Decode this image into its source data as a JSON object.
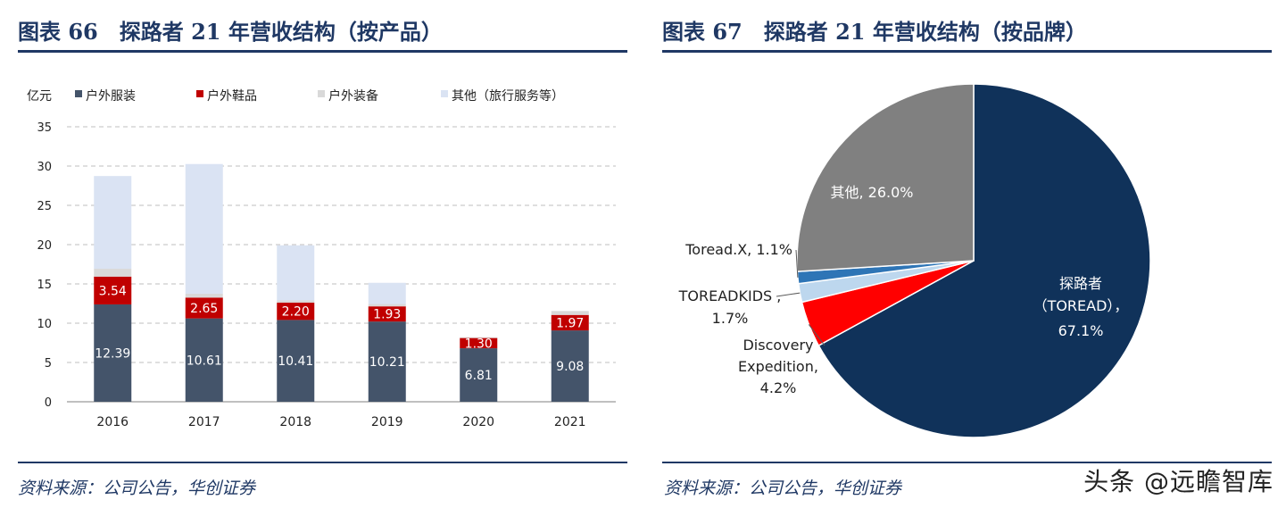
{
  "left": {
    "title": "图表 66　探路者 21 年营收结构（按产品）",
    "source": "资料来源：公司公告，华创证券"
  },
  "right": {
    "title": "图表 67　探路者 21 年营收结构（按品牌）",
    "source": "资料来源：公司公告，华创证券"
  },
  "watermark": "头条 @远瞻智库",
  "chart_data": [
    {
      "type": "bar",
      "stacked": true,
      "ylabel": "亿元",
      "ylim": [
        0,
        35
      ],
      "yticks": [
        "0",
        "5",
        "10",
        "15",
        "20",
        "25",
        "30",
        "35"
      ],
      "grid": true,
      "legend_position": "top",
      "categories": [
        "2016",
        "2017",
        "2018",
        "2019",
        "2020",
        "2021"
      ],
      "series": [
        {
          "name": "户外服装",
          "color": "#44546a",
          "values": [
            12.39,
            10.61,
            10.41,
            10.21,
            6.81,
            9.08
          ],
          "labels": [
            "12.39",
            "10.61",
            "10.41",
            "10.21",
            "6.81",
            "9.08"
          ]
        },
        {
          "name": "户外鞋品",
          "color": "#c00000",
          "values": [
            3.54,
            2.65,
            2.2,
            1.93,
            1.3,
            1.97
          ],
          "labels": [
            "3.54",
            "2.65",
            "2.20",
            "1.93",
            "1.30",
            "1.97"
          ]
        },
        {
          "name": "户外装备",
          "color": "#d9d9d9",
          "values": [
            1.0,
            0.5,
            0.3,
            0.3,
            0.1,
            0.5
          ],
          "labels": []
        },
        {
          "name": "其他（旅行服务等）",
          "color": "#dae3f3",
          "values": [
            11.8,
            16.5,
            7.0,
            2.7,
            0.0,
            0.0
          ],
          "labels": []
        }
      ]
    },
    {
      "type": "pie",
      "slices": [
        {
          "label": "探路者（TOREAD），67.1%",
          "value": 67.1,
          "color": "#10325a",
          "lines": [
            "探路者",
            "（TOREAD），",
            "67.1%"
          ]
        },
        {
          "label": "Discovery Expedition, 4.2%",
          "value": 4.2,
          "color": "#ff0000",
          "lines": [
            "Discovery",
            "Expedition,",
            "4.2%"
          ]
        },
        {
          "label": "TOREADKIDS , 1.7%",
          "value": 1.7,
          "color": "#bdd7ee",
          "lines": [
            "TOREADKIDS ,",
            "1.7%"
          ]
        },
        {
          "label": "Toread.X, 1.1%",
          "value": 1.1,
          "color": "#2e75b6",
          "lines": [
            "Toread.X, 1.1%"
          ]
        },
        {
          "label": "其他, 26.0%",
          "value": 26.0,
          "color": "#808080",
          "lines": [
            "其他, 26.0%"
          ]
        }
      ]
    }
  ]
}
